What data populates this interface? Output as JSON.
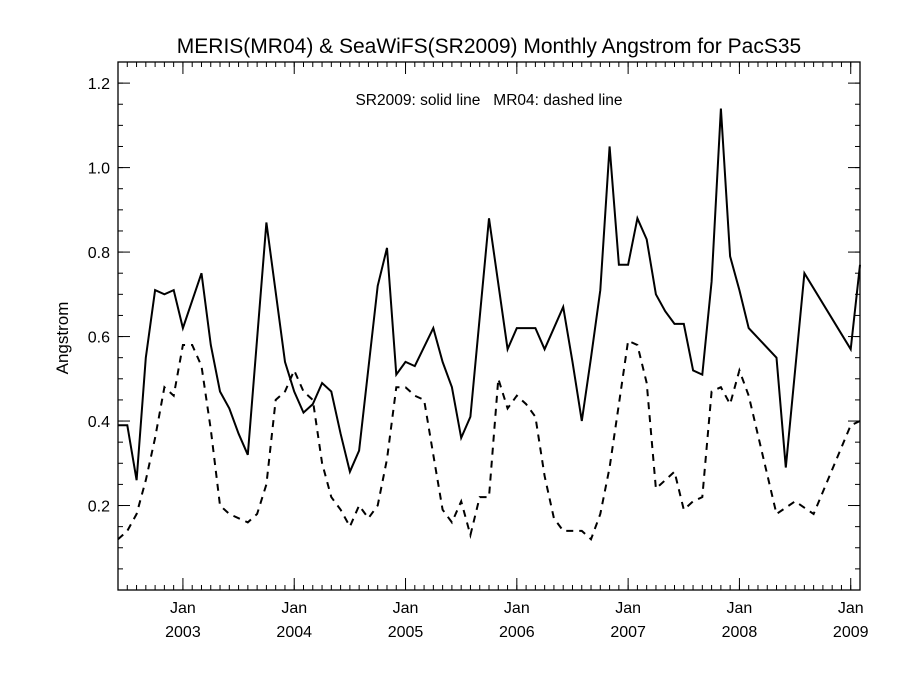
{
  "chart_data": {
    "type": "line",
    "title": "MERIS(MR04) & SeaWiFS(SR2009) Monthly Angstrom for PacS35",
    "annotation": "SR2009: solid line   MR04: dashed line",
    "xlabel": "",
    "ylabel": "Angstrom",
    "xlim": [
      "2002-06-01",
      "2009-02-01"
    ],
    "ylim": [
      0.0,
      1.25
    ],
    "x_ticks": [
      {
        "date": "2003-01-01",
        "month": "Jan",
        "year": "2003"
      },
      {
        "date": "2004-01-01",
        "month": "Jan",
        "year": "2004"
      },
      {
        "date": "2005-01-01",
        "month": "Jan",
        "year": "2005"
      },
      {
        "date": "2006-01-01",
        "month": "Jan",
        "year": "2006"
      },
      {
        "date": "2007-01-01",
        "month": "Jan",
        "year": "2007"
      },
      {
        "date": "2008-01-01",
        "month": "Jan",
        "year": "2008"
      },
      {
        "date": "2009-01-01",
        "month": "Jan",
        "year": "2009"
      }
    ],
    "y_ticks": [
      "0.2",
      "0.4",
      "0.6",
      "0.8",
      "1.0",
      "1.2"
    ],
    "y_tick_values": [
      0.2,
      0.4,
      0.6,
      0.8,
      1.0,
      1.2
    ],
    "y_minor_step": 0.05,
    "x_minor_step_months": 1,
    "series": [
      {
        "name": "SR2009",
        "style": "solid",
        "color": "#000000",
        "points": [
          [
            "2002-06-01",
            0.39
          ],
          [
            "2002-07-01",
            0.39
          ],
          [
            "2002-08-01",
            0.26
          ],
          [
            "2002-09-01",
            0.55
          ],
          [
            "2002-10-01",
            0.71
          ],
          [
            "2002-11-01",
            0.7
          ],
          [
            "2002-12-01",
            0.71
          ],
          [
            "2003-01-01",
            0.62
          ],
          [
            "2003-03-01",
            0.75
          ],
          [
            "2003-04-01",
            0.58
          ],
          [
            "2003-05-01",
            0.47
          ],
          [
            "2003-06-01",
            0.43
          ],
          [
            "2003-07-01",
            0.37
          ],
          [
            "2003-08-01",
            0.32
          ],
          [
            "2003-10-01",
            0.87
          ],
          [
            "2003-12-01",
            0.54
          ],
          [
            "2004-01-01",
            0.47
          ],
          [
            "2004-02-01",
            0.42
          ],
          [
            "2004-03-01",
            0.44
          ],
          [
            "2004-04-01",
            0.49
          ],
          [
            "2004-05-01",
            0.47
          ],
          [
            "2004-06-01",
            0.37
          ],
          [
            "2004-07-01",
            0.28
          ],
          [
            "2004-08-01",
            0.33
          ],
          [
            "2004-10-01",
            0.72
          ],
          [
            "2004-11-01",
            0.81
          ],
          [
            "2004-12-01",
            0.51
          ],
          [
            "2005-01-01",
            0.54
          ],
          [
            "2005-02-01",
            0.53
          ],
          [
            "2005-04-01",
            0.62
          ],
          [
            "2005-05-01",
            0.54
          ],
          [
            "2005-06-01",
            0.48
          ],
          [
            "2005-07-01",
            0.36
          ],
          [
            "2005-08-01",
            0.41
          ],
          [
            "2005-10-01",
            0.88
          ],
          [
            "2005-12-01",
            0.57
          ],
          [
            "2006-01-01",
            0.62
          ],
          [
            "2006-03-01",
            0.62
          ],
          [
            "2006-04-01",
            0.57
          ],
          [
            "2006-06-01",
            0.67
          ],
          [
            "2006-07-01",
            0.54
          ],
          [
            "2006-08-01",
            0.4
          ],
          [
            "2006-09-01",
            0.55
          ],
          [
            "2006-10-01",
            0.71
          ],
          [
            "2006-11-01",
            1.05
          ],
          [
            "2006-12-01",
            0.77
          ],
          [
            "2007-01-01",
            0.77
          ],
          [
            "2007-02-01",
            0.88
          ],
          [
            "2007-03-01",
            0.83
          ],
          [
            "2007-04-01",
            0.7
          ],
          [
            "2007-05-01",
            0.66
          ],
          [
            "2007-06-01",
            0.63
          ],
          [
            "2007-07-01",
            0.63
          ],
          [
            "2007-08-01",
            0.52
          ],
          [
            "2007-09-01",
            0.51
          ],
          [
            "2007-10-01",
            0.73
          ],
          [
            "2007-11-01",
            1.14
          ],
          [
            "2007-12-01",
            0.79
          ],
          [
            "2008-01-01",
            0.71
          ],
          [
            "2008-02-01",
            0.62
          ],
          [
            "2008-05-01",
            0.55
          ],
          [
            "2008-06-01",
            0.29
          ],
          [
            "2008-08-01",
            0.75
          ],
          [
            "2009-01-01",
            0.57
          ],
          [
            "2009-02-01",
            0.77
          ]
        ]
      },
      {
        "name": "MR04",
        "style": "dashed",
        "color": "#000000",
        "points": [
          [
            "2002-06-01",
            0.12
          ],
          [
            "2002-07-01",
            0.14
          ],
          [
            "2002-08-01",
            0.18
          ],
          [
            "2002-09-01",
            0.26
          ],
          [
            "2002-10-01",
            0.36
          ],
          [
            "2002-11-01",
            0.48
          ],
          [
            "2002-12-01",
            0.46
          ],
          [
            "2003-01-01",
            0.58
          ],
          [
            "2003-02-01",
            0.58
          ],
          [
            "2003-03-01",
            0.53
          ],
          [
            "2003-04-01",
            0.38
          ],
          [
            "2003-05-01",
            0.2
          ],
          [
            "2003-06-01",
            0.18
          ],
          [
            "2003-08-01",
            0.16
          ],
          [
            "2003-09-01",
            0.18
          ],
          [
            "2003-10-01",
            0.25
          ],
          [
            "2003-11-01",
            0.45
          ],
          [
            "2003-12-01",
            0.47
          ],
          [
            "2004-01-01",
            0.52
          ],
          [
            "2004-02-01",
            0.47
          ],
          [
            "2004-03-01",
            0.45
          ],
          [
            "2004-04-01",
            0.3
          ],
          [
            "2004-05-01",
            0.22
          ],
          [
            "2004-06-01",
            0.19
          ],
          [
            "2004-07-01",
            0.15
          ],
          [
            "2004-08-01",
            0.2
          ],
          [
            "2004-09-01",
            0.17
          ],
          [
            "2004-10-01",
            0.2
          ],
          [
            "2004-11-01",
            0.31
          ],
          [
            "2004-12-01",
            0.48
          ],
          [
            "2005-01-01",
            0.48
          ],
          [
            "2005-02-01",
            0.46
          ],
          [
            "2005-03-01",
            0.45
          ],
          [
            "2005-04-01",
            0.32
          ],
          [
            "2005-05-01",
            0.19
          ],
          [
            "2005-06-01",
            0.16
          ],
          [
            "2005-07-01",
            0.21
          ],
          [
            "2005-08-01",
            0.13
          ],
          [
            "2005-09-01",
            0.22
          ],
          [
            "2005-10-01",
            0.22
          ],
          [
            "2005-11-01",
            0.5
          ],
          [
            "2005-12-01",
            0.43
          ],
          [
            "2006-01-01",
            0.46
          ],
          [
            "2006-02-01",
            0.44
          ],
          [
            "2006-03-01",
            0.41
          ],
          [
            "2006-04-01",
            0.27
          ],
          [
            "2006-05-01",
            0.17
          ],
          [
            "2006-06-01",
            0.14
          ],
          [
            "2006-07-01",
            0.14
          ],
          [
            "2006-08-01",
            0.14
          ],
          [
            "2006-09-01",
            0.12
          ],
          [
            "2006-10-01",
            0.18
          ],
          [
            "2006-11-01",
            0.29
          ],
          [
            "2006-12-01",
            0.44
          ],
          [
            "2007-01-01",
            0.59
          ],
          [
            "2007-02-01",
            0.58
          ],
          [
            "2007-03-01",
            0.49
          ],
          [
            "2007-04-01",
            0.24
          ],
          [
            "2007-05-01",
            0.26
          ],
          [
            "2007-06-01",
            0.28
          ],
          [
            "2007-07-01",
            0.19
          ],
          [
            "2007-08-01",
            0.21
          ],
          [
            "2007-09-01",
            0.22
          ],
          [
            "2007-10-01",
            0.47
          ],
          [
            "2007-11-01",
            0.48
          ],
          [
            "2007-12-01",
            0.44
          ],
          [
            "2008-01-01",
            0.52
          ],
          [
            "2008-02-01",
            0.46
          ],
          [
            "2008-05-01",
            0.18
          ],
          [
            "2008-07-01",
            0.21
          ],
          [
            "2008-09-01",
            0.18
          ],
          [
            "2009-01-01",
            0.39
          ],
          [
            "2009-02-01",
            0.4
          ]
        ]
      }
    ]
  }
}
